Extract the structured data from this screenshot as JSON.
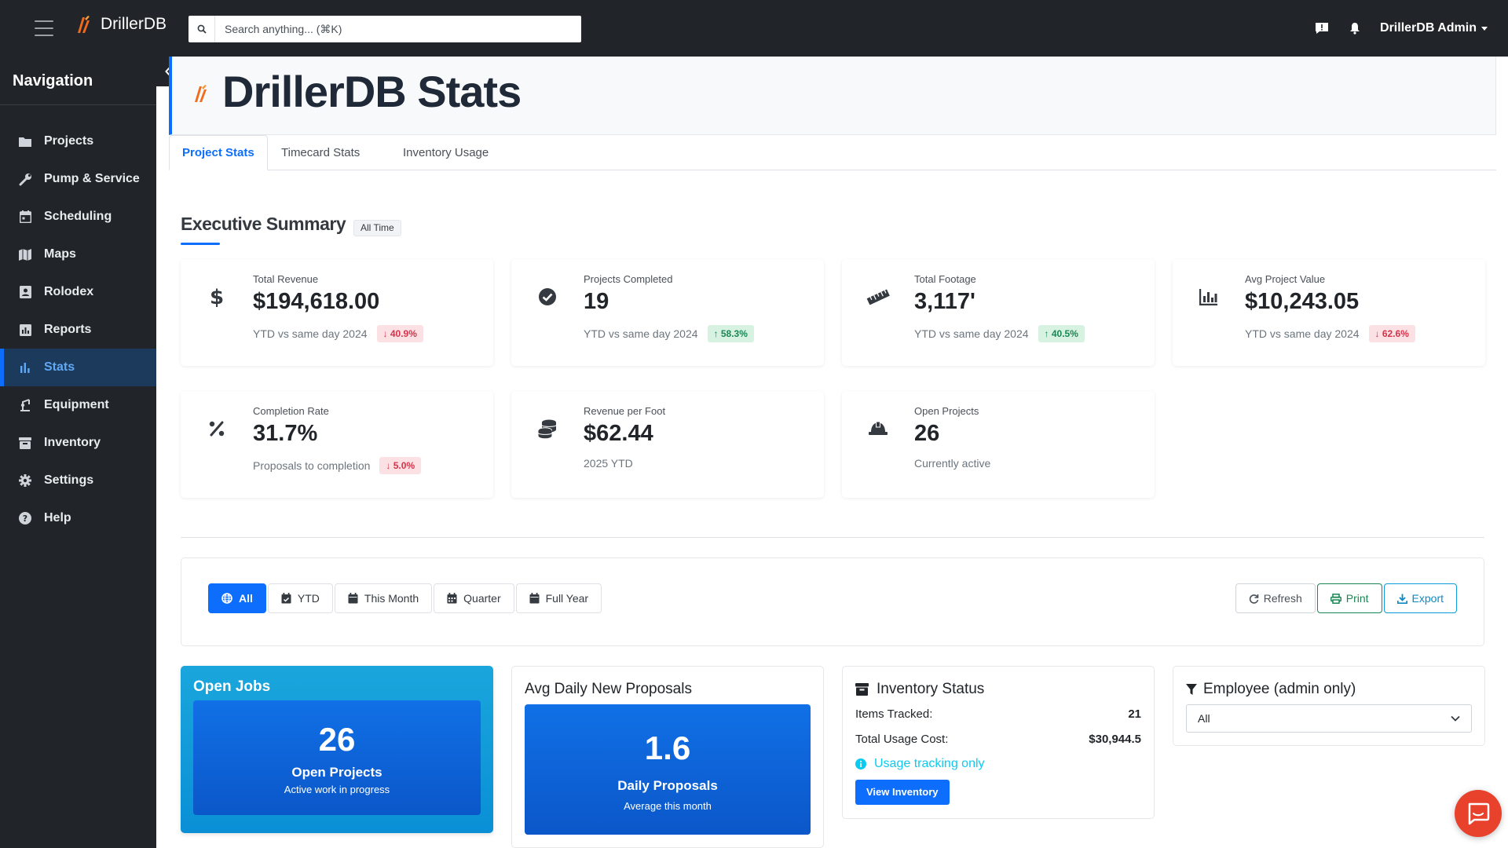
{
  "app": {
    "brand": "DrillerDB",
    "search_placeholder": "Search anything... (⌘K)",
    "user_name": "DrillerDB Admin",
    "accent_color": "#0d6efd",
    "brand_color": "#f26b1d"
  },
  "sidebar": {
    "title": "Navigation",
    "items": [
      {
        "label": "Projects",
        "icon": "folder-icon",
        "active": false
      },
      {
        "label": "Pump & Service",
        "icon": "wrench-icon",
        "active": false
      },
      {
        "label": "Scheduling",
        "icon": "calendar-icon",
        "active": false
      },
      {
        "label": "Maps",
        "icon": "map-icon",
        "active": false
      },
      {
        "label": "Rolodex",
        "icon": "contact-book-icon",
        "active": false
      },
      {
        "label": "Reports",
        "icon": "report-chart-icon",
        "active": false
      },
      {
        "label": "Stats",
        "icon": "bar-chart-icon",
        "active": true
      },
      {
        "label": "Equipment",
        "icon": "drill-rig-icon",
        "active": false
      },
      {
        "label": "Inventory",
        "icon": "archive-box-icon",
        "active": false
      },
      {
        "label": "Settings",
        "icon": "gear-icon",
        "active": false
      },
      {
        "label": "Help",
        "icon": "help-circle-icon",
        "active": false
      }
    ]
  },
  "page": {
    "title": "DrillerDB Stats",
    "tabs": [
      {
        "label": "Project Stats",
        "active": true
      },
      {
        "label": "Timecard Stats",
        "active": false
      },
      {
        "label": "Inventory Usage",
        "active": false
      }
    ]
  },
  "summary": {
    "title": "Executive Summary",
    "badge": "All Time",
    "cards": [
      {
        "label": "Total Revenue",
        "value": "$194,618.00",
        "sub": "YTD vs same day 2024",
        "change": "↓ 40.9%",
        "trend": "down",
        "icon": "dollar-icon"
      },
      {
        "label": "Projects Completed",
        "value": "19",
        "sub": "YTD vs same day 2024",
        "change": "↑ 58.3%",
        "trend": "up",
        "icon": "check-circle-icon"
      },
      {
        "label": "Total Footage",
        "value": "3,117'",
        "sub": "YTD vs same day 2024",
        "change": "↑ 40.5%",
        "trend": "up",
        "icon": "ruler-icon"
      },
      {
        "label": "Avg Project Value",
        "value": "$10,243.05",
        "sub": "YTD vs same day 2024",
        "change": "↓ 62.6%",
        "trend": "down",
        "icon": "bar-chart-icon"
      },
      {
        "label": "Completion Rate",
        "value": "31.7%",
        "sub": "Proposals to completion",
        "change": "↓ 5.0%",
        "trend": "down",
        "icon": "percent-icon"
      },
      {
        "label": "Revenue per Foot",
        "value": "$62.44",
        "sub": "2025 YTD",
        "change": "",
        "trend": "",
        "icon": "coins-icon"
      },
      {
        "label": "Open Projects",
        "value": "26",
        "sub": "Currently active",
        "change": "",
        "trend": "",
        "icon": "hard-hat-icon"
      }
    ]
  },
  "filters": {
    "periods": [
      {
        "label": "All",
        "icon": "globe-icon",
        "active": true
      },
      {
        "label": "YTD",
        "icon": "calendar-check-icon",
        "active": false
      },
      {
        "label": "This Month",
        "icon": "calendar-icon",
        "active": false
      },
      {
        "label": "Quarter",
        "icon": "calendar-grid-icon",
        "active": false
      },
      {
        "label": "Full Year",
        "icon": "calendar-icon",
        "active": false
      }
    ],
    "actions": {
      "refresh": "Refresh",
      "print": "Print",
      "export": "Export"
    }
  },
  "open_jobs": {
    "title": "Open Jobs",
    "value": "26",
    "label": "Open Projects",
    "sub": "Active work in progress"
  },
  "proposals": {
    "title": "Avg Daily New Proposals",
    "value": "1.6",
    "label": "Daily Proposals",
    "sub": "Average this month"
  },
  "inventory": {
    "title": "Inventory Status",
    "items_label": "Items Tracked:",
    "items_value": "21",
    "cost_label": "Total Usage Cost:",
    "cost_value": "$30,944.5",
    "note": "Usage tracking only",
    "button": "View Inventory"
  },
  "employee": {
    "title": "Employee (admin only)",
    "selected": "All"
  }
}
